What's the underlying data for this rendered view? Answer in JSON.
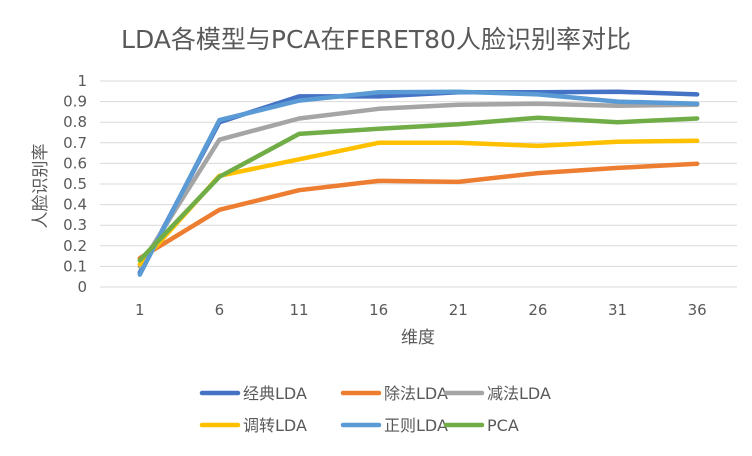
{
  "chart_data": {
    "type": "line",
    "title": "LDA各模型与PCA在FERET80人脸识别率对比",
    "xlabel": "维度",
    "ylabel": "人脸识别率",
    "categories": [
      "1",
      "6",
      "11",
      "16",
      "21",
      "26",
      "31",
      "36"
    ],
    "ylim": [
      0,
      1
    ],
    "yticks": [
      "0",
      "0.1",
      "0.2",
      "0.3",
      "0.4",
      "0.5",
      "0.6",
      "0.7",
      "0.8",
      "0.9",
      "1"
    ],
    "grid": true,
    "legend_position": "bottom",
    "series": [
      {
        "name": "经典LDA",
        "color": "#4472C4",
        "values": [
          0.07,
          0.8,
          0.925,
          0.925,
          0.945,
          0.945,
          0.948,
          0.935
        ]
      },
      {
        "name": "除法LDA",
        "color": "#ED7D31",
        "values": [
          0.14,
          0.375,
          0.47,
          0.515,
          0.51,
          0.553,
          0.578,
          0.598
        ]
      },
      {
        "name": "减法LDA",
        "color": "#A5A5A5",
        "values": [
          0.1,
          0.715,
          0.818,
          0.865,
          0.885,
          0.89,
          0.88,
          0.885
        ]
      },
      {
        "name": "调转LDA",
        "color": "#FFC000",
        "values": [
          0.11,
          0.54,
          0.62,
          0.7,
          0.7,
          0.685,
          0.705,
          0.71
        ]
      },
      {
        "name": "正则LDA",
        "color": "#5B9BD5",
        "values": [
          0.06,
          0.81,
          0.905,
          0.945,
          0.948,
          0.935,
          0.9,
          0.89
        ]
      },
      {
        "name": "PCA",
        "color": "#70AD47",
        "values": [
          0.13,
          0.535,
          0.743,
          0.768,
          0.79,
          0.822,
          0.8,
          0.818
        ]
      }
    ]
  }
}
